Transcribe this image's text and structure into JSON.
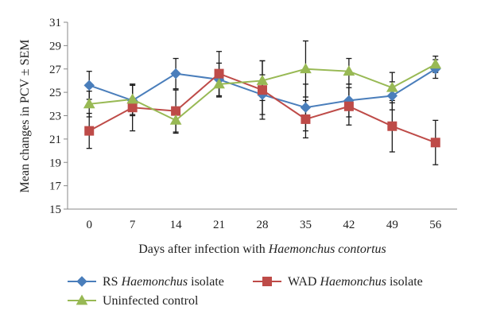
{
  "chart_data": {
    "type": "line",
    "title": "",
    "xlabel": "Days after infection with",
    "xlabel_italic": "Haemonchus contortus",
    "ylabel": "Mean changes in PCV ± SEM",
    "x": [
      0,
      7,
      14,
      21,
      28,
      35,
      42,
      49,
      56
    ],
    "ylim": [
      15,
      31
    ],
    "yticks": [
      15,
      17,
      19,
      21,
      23,
      25,
      27,
      29,
      31
    ],
    "grid": false,
    "legend_position": "bottom",
    "series": [
      {
        "name": "RS Haemonchus isolate",
        "name_prefix": "RS",
        "name_italic": "Haemonchus",
        "name_suffix": "isolate",
        "color": "#4a7ebb",
        "marker": "diamond",
        "values": [
          25.6,
          24.3,
          26.6,
          26.1,
          24.8,
          23.7,
          24.3,
          24.7,
          27.0
        ],
        "errors": [
          1.2,
          1.3,
          1.3,
          1.4,
          1.7,
          2.0,
          1.4,
          1.2,
          0.8
        ]
      },
      {
        "name": "WAD Haemonchus isolate",
        "name_prefix": "WAD",
        "name_italic": "Haemonchus",
        "name_suffix": "isolate",
        "color": "#be4b48",
        "marker": "square",
        "values": [
          21.7,
          23.7,
          23.4,
          26.6,
          25.2,
          22.7,
          23.8,
          22.1,
          20.7
        ],
        "errors": [
          1.5,
          2.0,
          1.8,
          1.9,
          2.5,
          1.6,
          1.6,
          2.2,
          1.9
        ]
      },
      {
        "name": "Uninfected control",
        "name_prefix": "Uninfected control",
        "name_italic": "",
        "name_suffix": "",
        "color": "#98b954",
        "marker": "triangle",
        "values": [
          24.0,
          24.4,
          22.6,
          25.7,
          26.0,
          27.0,
          26.8,
          25.4,
          27.4
        ],
        "errors": [
          1.1,
          1.3,
          1.1,
          1.1,
          1.7,
          2.4,
          1.1,
          1.3,
          0.7
        ]
      }
    ]
  }
}
